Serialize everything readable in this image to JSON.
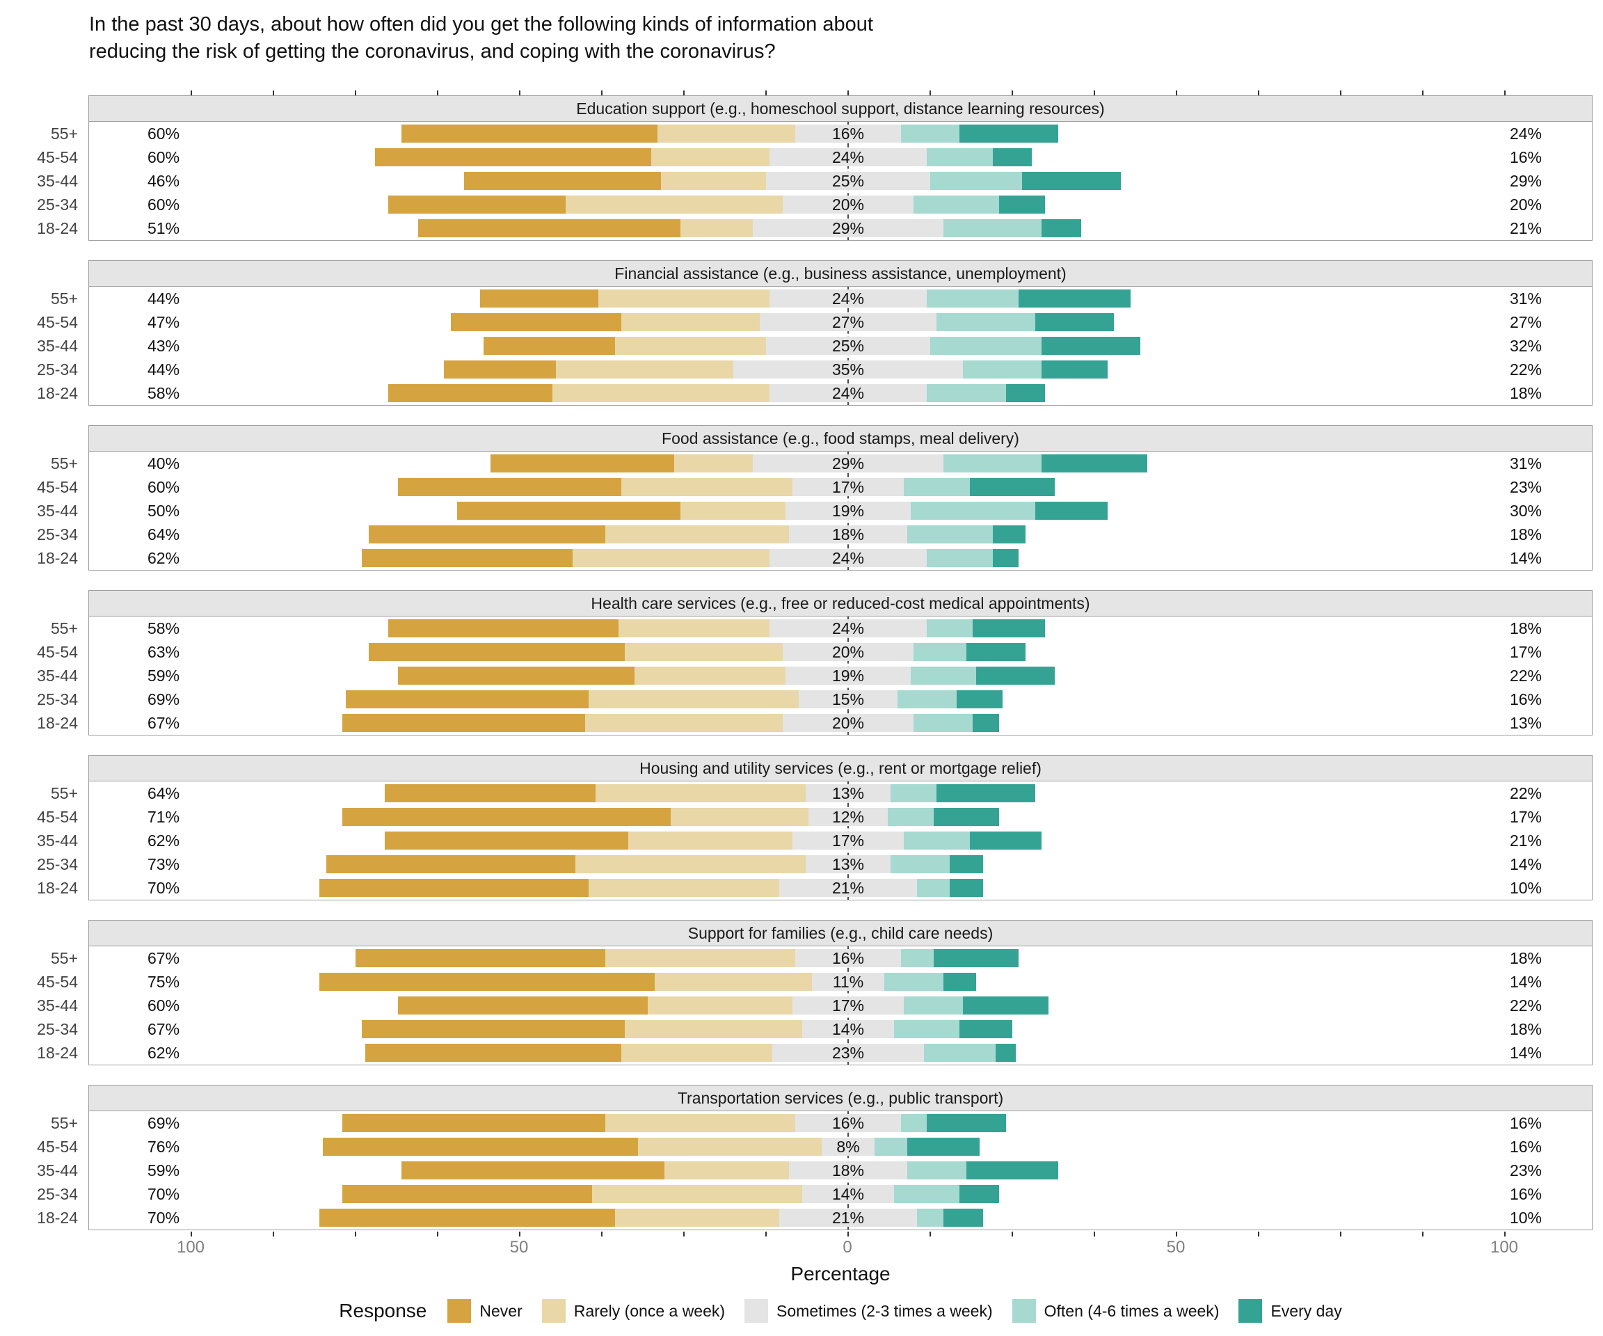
{
  "title": {
    "line1": "In the past 30 days, about how often did you get the following kinds of information about",
    "line2": "reducing the risk of getting the coronavirus, and coping with the coronavirus?"
  },
  "axis": {
    "xlabel": "Percentage",
    "ticks": [
      "100",
      "50",
      "0",
      "50",
      "100"
    ],
    "tick_positions": [
      -100,
      -50,
      0,
      50,
      100
    ]
  },
  "legend": {
    "title": "Response",
    "items": [
      {
        "key": "never",
        "label": "Never",
        "color": "#d5a441"
      },
      {
        "key": "rarely",
        "label": "Rarely (once a week)",
        "color": "#e9d7a7"
      },
      {
        "key": "sometimes",
        "label": "Sometimes (2-3 times a week)",
        "color": "#e4e4e4"
      },
      {
        "key": "often",
        "label": "Often (4-6 times a week)",
        "color": "#a6d9d0"
      },
      {
        "key": "every_day",
        "label": "Every day",
        "color": "#35a394"
      }
    ]
  },
  "chart_data": {
    "type": "diverging_stacked_bar",
    "question": "In the past 30 days, about how often did you get the following kinds of information about reducing the risk of getting the coronavirus, and coping with the coronavirus?",
    "xlabel": "Percentage",
    "xlim": [
      -100,
      100
    ],
    "age_groups": [
      "55+",
      "45-54",
      "35-44",
      "25-34",
      "18-24"
    ],
    "response_levels": [
      "Never",
      "Rarely (once a week)",
      "Sometimes (2-3 times a week)",
      "Often (4-6 times a week)",
      "Every day"
    ],
    "panels": [
      {
        "title": "Education support (e.g., homeschool support, distance learning resources)",
        "rows": [
          {
            "age": "55+",
            "labels": {
              "left": "60%",
              "mid": "16%",
              "right": "24%"
            },
            "seg": {
              "never": 39,
              "rarely": 21,
              "sometimes": 16,
              "often": 9,
              "every_day": 15
            }
          },
          {
            "age": "45-54",
            "labels": {
              "left": "60%",
              "mid": "24%",
              "right": "16%"
            },
            "seg": {
              "never": 42,
              "rarely": 18,
              "sometimes": 24,
              "often": 10,
              "every_day": 6
            }
          },
          {
            "age": "35-44",
            "labels": {
              "left": "46%",
              "mid": "25%",
              "right": "29%"
            },
            "seg": {
              "never": 30,
              "rarely": 16,
              "sometimes": 25,
              "often": 14,
              "every_day": 15
            }
          },
          {
            "age": "25-34",
            "labels": {
              "left": "60%",
              "mid": "20%",
              "right": "20%"
            },
            "seg": {
              "never": 27,
              "rarely": 33,
              "sometimes": 20,
              "often": 13,
              "every_day": 7
            }
          },
          {
            "age": "18-24",
            "labels": {
              "left": "51%",
              "mid": "29%",
              "right": "21%"
            },
            "seg": {
              "never": 40,
              "rarely": 11,
              "sometimes": 29,
              "often": 15,
              "every_day": 6
            }
          }
        ]
      },
      {
        "title": "Financial assistance (e.g., business assistance, unemployment)",
        "rows": [
          {
            "age": "55+",
            "labels": {
              "left": "44%",
              "mid": "24%",
              "right": "31%"
            },
            "seg": {
              "never": 18,
              "rarely": 26,
              "sometimes": 24,
              "often": 14,
              "every_day": 17
            }
          },
          {
            "age": "45-54",
            "labels": {
              "left": "47%",
              "mid": "27%",
              "right": "27%"
            },
            "seg": {
              "never": 26,
              "rarely": 21,
              "sometimes": 27,
              "often": 15,
              "every_day": 12
            }
          },
          {
            "age": "35-44",
            "labels": {
              "left": "43%",
              "mid": "25%",
              "right": "32%"
            },
            "seg": {
              "never": 20,
              "rarely": 23,
              "sometimes": 25,
              "often": 17,
              "every_day": 15
            }
          },
          {
            "age": "25-34",
            "labels": {
              "left": "44%",
              "mid": "35%",
              "right": "22%"
            },
            "seg": {
              "never": 17,
              "rarely": 27,
              "sometimes": 35,
              "often": 12,
              "every_day": 10
            }
          },
          {
            "age": "18-24",
            "labels": {
              "left": "58%",
              "mid": "24%",
              "right": "18%"
            },
            "seg": {
              "never": 25,
              "rarely": 33,
              "sometimes": 24,
              "often": 12,
              "every_day": 6
            }
          }
        ]
      },
      {
        "title": "Food assistance (e.g., food stamps, meal delivery)",
        "rows": [
          {
            "age": "55+",
            "labels": {
              "left": "40%",
              "mid": "29%",
              "right": "31%"
            },
            "seg": {
              "never": 28,
              "rarely": 12,
              "sometimes": 29,
              "often": 15,
              "every_day": 16
            }
          },
          {
            "age": "45-54",
            "labels": {
              "left": "60%",
              "mid": "17%",
              "right": "23%"
            },
            "seg": {
              "never": 34,
              "rarely": 26,
              "sometimes": 17,
              "often": 10,
              "every_day": 13
            }
          },
          {
            "age": "35-44",
            "labels": {
              "left": "50%",
              "mid": "19%",
              "right": "30%"
            },
            "seg": {
              "never": 34,
              "rarely": 16,
              "sometimes": 19,
              "often": 19,
              "every_day": 11
            }
          },
          {
            "age": "25-34",
            "labels": {
              "left": "64%",
              "mid": "18%",
              "right": "18%"
            },
            "seg": {
              "never": 36,
              "rarely": 28,
              "sometimes": 18,
              "often": 13,
              "every_day": 5
            }
          },
          {
            "age": "18-24",
            "labels": {
              "left": "62%",
              "mid": "24%",
              "right": "14%"
            },
            "seg": {
              "never": 32,
              "rarely": 30,
              "sometimes": 24,
              "often": 10,
              "every_day": 4
            }
          }
        ]
      },
      {
        "title": "Health care services (e.g., free or reduced-cost medical appointments)",
        "rows": [
          {
            "age": "55+",
            "labels": {
              "left": "58%",
              "mid": "24%",
              "right": "18%"
            },
            "seg": {
              "never": 35,
              "rarely": 23,
              "sometimes": 24,
              "often": 7,
              "every_day": 11
            }
          },
          {
            "age": "45-54",
            "labels": {
              "left": "63%",
              "mid": "20%",
              "right": "17%"
            },
            "seg": {
              "never": 39,
              "rarely": 24,
              "sometimes": 20,
              "often": 8,
              "every_day": 9
            }
          },
          {
            "age": "35-44",
            "labels": {
              "left": "59%",
              "mid": "19%",
              "right": "22%"
            },
            "seg": {
              "never": 36,
              "rarely": 23,
              "sometimes": 19,
              "often": 10,
              "every_day": 12
            }
          },
          {
            "age": "25-34",
            "labels": {
              "left": "69%",
              "mid": "15%",
              "right": "16%"
            },
            "seg": {
              "never": 37,
              "rarely": 32,
              "sometimes": 15,
              "often": 9,
              "every_day": 7
            }
          },
          {
            "age": "18-24",
            "labels": {
              "left": "67%",
              "mid": "20%",
              "right": "13%"
            },
            "seg": {
              "never": 37,
              "rarely": 30,
              "sometimes": 20,
              "often": 9,
              "every_day": 4
            }
          }
        ]
      },
      {
        "title": "Housing and utility services (e.g., rent or mortgage relief)",
        "rows": [
          {
            "age": "55+",
            "labels": {
              "left": "64%",
              "mid": "13%",
              "right": "22%"
            },
            "seg": {
              "never": 32,
              "rarely": 32,
              "sometimes": 13,
              "often": 7,
              "every_day": 15
            }
          },
          {
            "age": "45-54",
            "labels": {
              "left": "71%",
              "mid": "12%",
              "right": "17%"
            },
            "seg": {
              "never": 50,
              "rarely": 21,
              "sometimes": 12,
              "often": 7,
              "every_day": 10
            }
          },
          {
            "age": "35-44",
            "labels": {
              "left": "62%",
              "mid": "17%",
              "right": "21%"
            },
            "seg": {
              "never": 37,
              "rarely": 25,
              "sometimes": 17,
              "often": 10,
              "every_day": 11
            }
          },
          {
            "age": "25-34",
            "labels": {
              "left": "73%",
              "mid": "13%",
              "right": "14%"
            },
            "seg": {
              "never": 38,
              "rarely": 35,
              "sometimes": 13,
              "often": 9,
              "every_day": 5
            }
          },
          {
            "age": "18-24",
            "labels": {
              "left": "70%",
              "mid": "21%",
              "right": "10%"
            },
            "seg": {
              "never": 41,
              "rarely": 29,
              "sometimes": 21,
              "often": 5,
              "every_day": 5
            }
          }
        ]
      },
      {
        "title": "Support for families (e.g., child care needs)",
        "rows": [
          {
            "age": "55+",
            "labels": {
              "left": "67%",
              "mid": "16%",
              "right": "18%"
            },
            "seg": {
              "never": 38,
              "rarely": 29,
              "sometimes": 16,
              "often": 5,
              "every_day": 13
            }
          },
          {
            "age": "45-54",
            "labels": {
              "left": "75%",
              "mid": "11%",
              "right": "14%"
            },
            "seg": {
              "never": 51,
              "rarely": 24,
              "sometimes": 11,
              "often": 9,
              "every_day": 5
            }
          },
          {
            "age": "35-44",
            "labels": {
              "left": "60%",
              "mid": "17%",
              "right": "22%"
            },
            "seg": {
              "never": 38,
              "rarely": 22,
              "sometimes": 17,
              "often": 9,
              "every_day": 13
            }
          },
          {
            "age": "25-34",
            "labels": {
              "left": "67%",
              "mid": "14%",
              "right": "18%"
            },
            "seg": {
              "never": 40,
              "rarely": 27,
              "sometimes": 14,
              "often": 10,
              "every_day": 8
            }
          },
          {
            "age": "18-24",
            "labels": {
              "left": "62%",
              "mid": "23%",
              "right": "14%"
            },
            "seg": {
              "never": 39,
              "rarely": 23,
              "sometimes": 23,
              "often": 11,
              "every_day": 3
            }
          }
        ]
      },
      {
        "title": "Transportation services (e.g., public transport)",
        "rows": [
          {
            "age": "55+",
            "labels": {
              "left": "69%",
              "mid": "16%",
              "right": "16%"
            },
            "seg": {
              "never": 40,
              "rarely": 29,
              "sometimes": 16,
              "often": 4,
              "every_day": 12
            }
          },
          {
            "age": "45-54",
            "labels": {
              "left": "76%",
              "mid": "8%",
              "right": "16%"
            },
            "seg": {
              "never": 48,
              "rarely": 28,
              "sometimes": 8,
              "often": 5,
              "every_day": 11
            }
          },
          {
            "age": "35-44",
            "labels": {
              "left": "59%",
              "mid": "18%",
              "right": "23%"
            },
            "seg": {
              "never": 40,
              "rarely": 19,
              "sometimes": 18,
              "often": 9,
              "every_day": 14
            }
          },
          {
            "age": "25-34",
            "labels": {
              "left": "70%",
              "mid": "14%",
              "right": "16%"
            },
            "seg": {
              "never": 38,
              "rarely": 32,
              "sometimes": 14,
              "often": 10,
              "every_day": 6
            }
          },
          {
            "age": "18-24",
            "labels": {
              "left": "70%",
              "mid": "21%",
              "right": "10%"
            },
            "seg": {
              "never": 45,
              "rarely": 25,
              "sometimes": 21,
              "often": 4,
              "every_day": 6
            }
          }
        ]
      }
    ]
  }
}
